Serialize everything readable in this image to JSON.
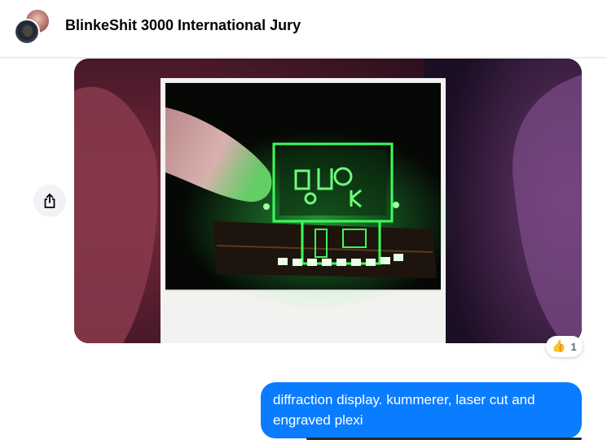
{
  "header": {
    "title": "BlinkeShit 3000 International Jury"
  },
  "message_image": {
    "subject": "laser-cut-plexi-display"
  },
  "share": {
    "icon": "share-icon"
  },
  "reaction": {
    "emoji": "👍",
    "count": "1"
  },
  "message_text": "diffraction display. kummerer, laser cut and engraved plexi",
  "colors": {
    "bubble": "#0a7cff",
    "glow": "#35ff55",
    "header_border": "#e4e6eb"
  }
}
